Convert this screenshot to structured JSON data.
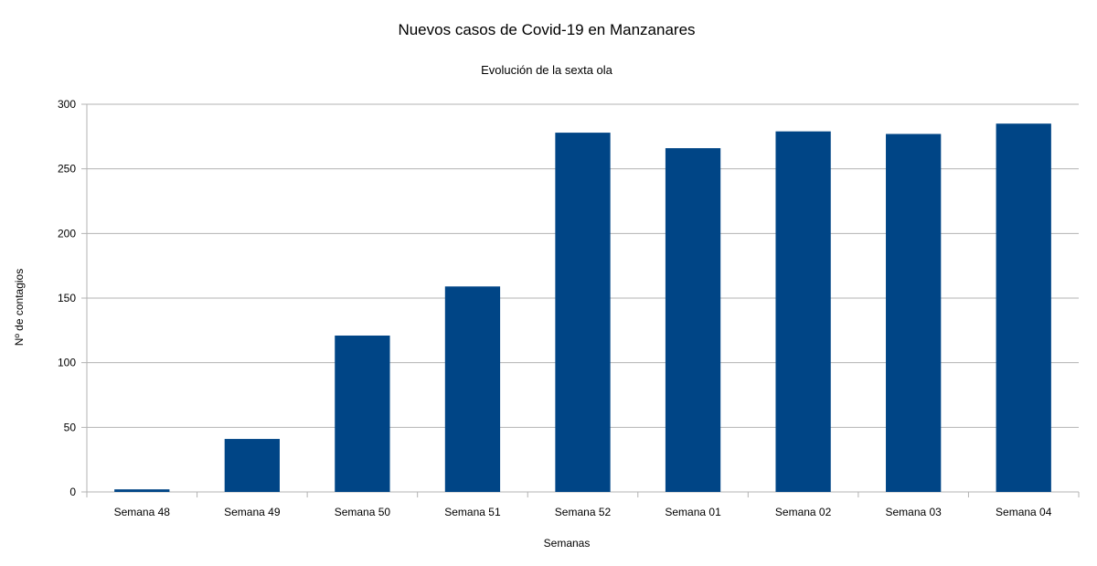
{
  "chart_data": {
    "type": "bar",
    "title": "Nuevos casos de Covid-19 en Manzanares",
    "subtitle": "Evolución de la sexta ola",
    "xlabel": "Semanas",
    "ylabel": "Nº de contagios",
    "ylim": [
      0,
      300
    ],
    "yticks": [
      0,
      50,
      100,
      150,
      200,
      250,
      300
    ],
    "grid": true,
    "legend": "none",
    "bar_color": "#004586",
    "categories": [
      "Semana 48",
      "Semana 49",
      "Semana 50",
      "Semana 51",
      "Semana 52",
      "Semana 01",
      "Semana 02",
      "Semana 03",
      "Semana 04"
    ],
    "values": [
      2,
      41,
      121,
      159,
      278,
      266,
      279,
      277,
      285
    ]
  }
}
